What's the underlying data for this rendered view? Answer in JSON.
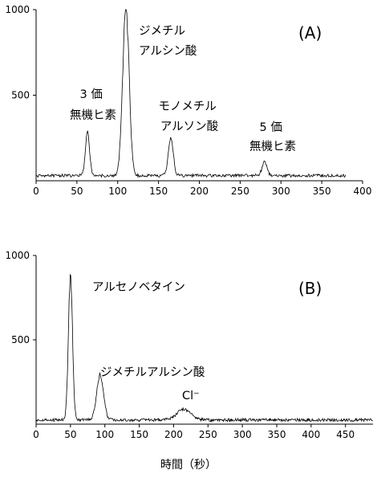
{
  "chart_data": [
    {
      "type": "line",
      "label": "(A)",
      "xlim": [
        0,
        400
      ],
      "ylim": [
        0,
        1000
      ],
      "xticks": [
        "0",
        "50",
        "100",
        "150",
        "200",
        "250",
        "300",
        "350",
        "400"
      ],
      "yticks": [
        "500",
        "1000"
      ],
      "grid": false,
      "baseline": 30,
      "x_end": 380,
      "peaks": [
        {
          "x": 63,
          "height": 290,
          "width": 2.5
        },
        {
          "x": 110,
          "height": 1000,
          "width": 4.0
        },
        {
          "x": 165,
          "height": 250,
          "width": 3.0
        },
        {
          "x": 280,
          "height": 110,
          "width": 3.0
        }
      ],
      "annotations": [
        {
          "lines": [
            "3 価",
            "無機ヒ素"
          ]
        },
        {
          "lines": [
            "ジメチル",
            "アルシン酸"
          ]
        },
        {
          "lines": [
            "モノメチル",
            "アルソン酸"
          ]
        },
        {
          "lines": [
            "5 価",
            "無機ヒ素"
          ]
        }
      ]
    },
    {
      "type": "line",
      "label": "(B)",
      "xlim": [
        0,
        490
      ],
      "ylim": [
        0,
        1000
      ],
      "xticks": [
        "0",
        "50",
        "100",
        "150",
        "200",
        "250",
        "300",
        "350",
        "400",
        "450"
      ],
      "yticks": [
        "500",
        "1000"
      ],
      "grid": false,
      "baseline": 25,
      "x_end": 490,
      "xlabel": "時間（秒）",
      "peaks": [
        {
          "x": 50,
          "height": 880,
          "width": 3.0
        },
        {
          "x": 93,
          "height": 290,
          "width": 5.0
        },
        {
          "x": 215,
          "height": 90,
          "width": 10.0
        }
      ],
      "annotations": [
        {
          "lines": [
            "アルセノベタイン"
          ]
        },
        {
          "lines": [
            "ジメチルアルシン酸"
          ]
        },
        {
          "lines": [
            "Cl⁻"
          ]
        }
      ]
    }
  ]
}
